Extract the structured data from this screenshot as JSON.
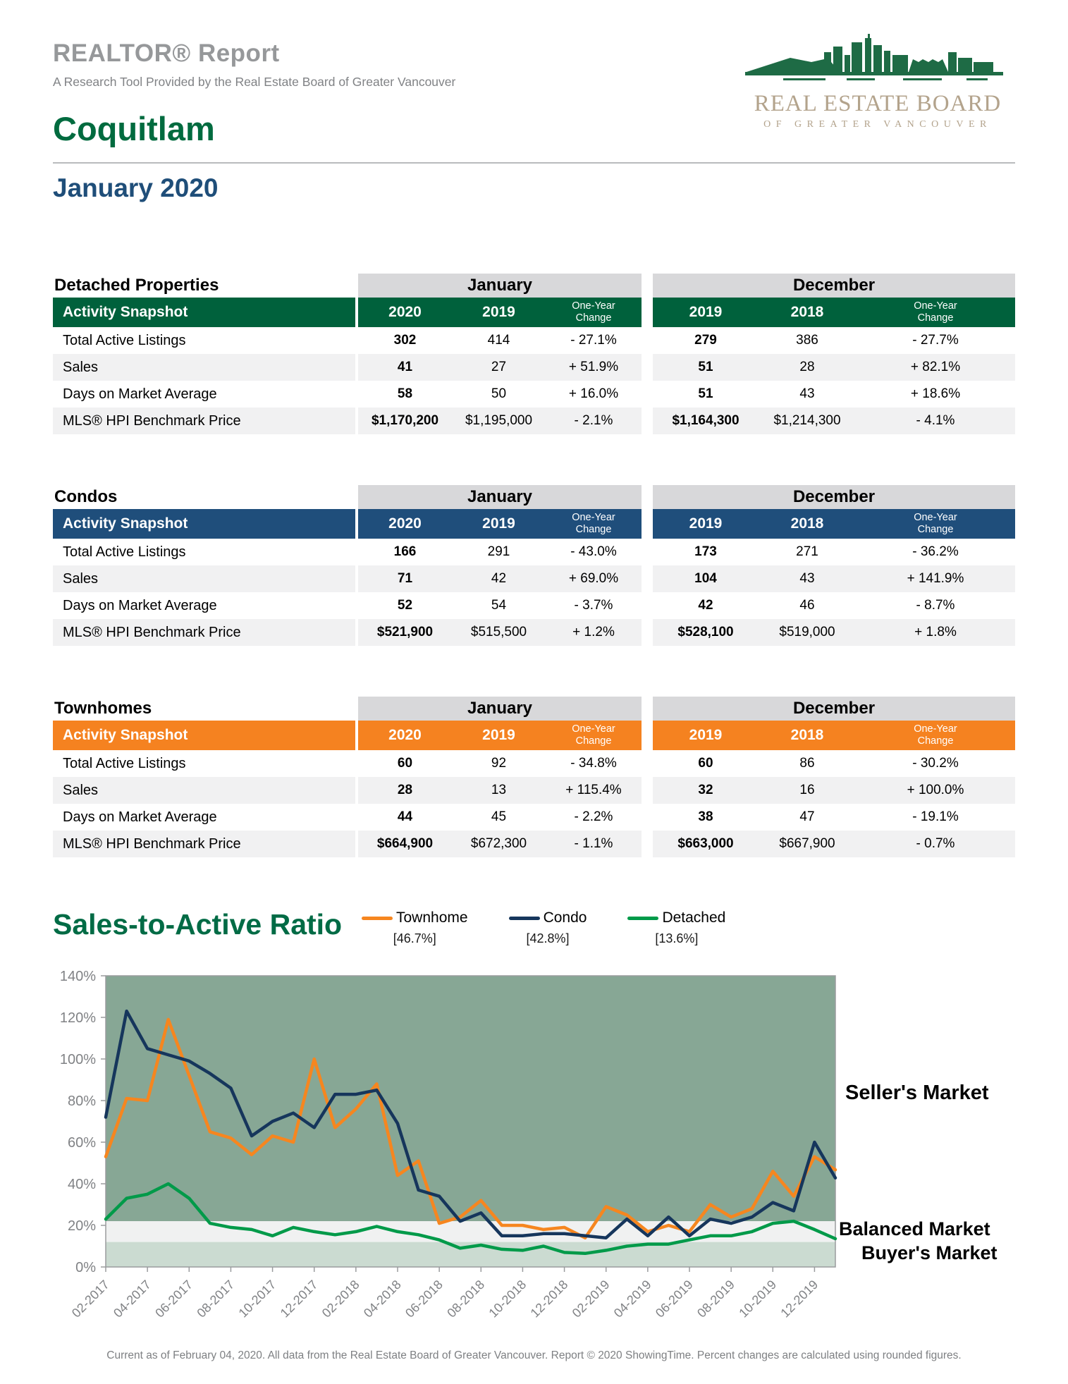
{
  "header": {
    "report_title": "REALTOR® Report",
    "report_subtitle": "A Research Tool Provided by the Real Estate Board of Greater Vancouver",
    "area_title": "Coquitlam",
    "period_title": "January 2020",
    "logo": {
      "icon": "city-skyline",
      "line1": "REAL ESTATE BOARD",
      "line2": "OF GREATER VANCOUVER"
    }
  },
  "tables": [
    {
      "title": "Detached Properties",
      "accent_color": "#00613C",
      "group1_label": "January",
      "group2_label": "December",
      "header_label": "Activity Snapshot",
      "col_headers": [
        "2020",
        "2019",
        "One-Year Change",
        "2019",
        "2018",
        "One-Year Change"
      ],
      "rows": [
        {
          "label": "Total Active Listings",
          "values": [
            "302",
            "414",
            "- 27.1%",
            "279",
            "386",
            "- 27.7%"
          ]
        },
        {
          "label": "Sales",
          "values": [
            "41",
            "27",
            "+ 51.9%",
            "51",
            "28",
            "+ 82.1%"
          ]
        },
        {
          "label": "Days on Market Average",
          "values": [
            "58",
            "50",
            "+ 16.0%",
            "51",
            "43",
            "+ 18.6%"
          ]
        },
        {
          "label": "MLS® HPI Benchmark Price",
          "values": [
            "$1,170,200",
            "$1,195,000",
            "- 2.1%",
            "$1,164,300",
            "$1,214,300",
            "- 4.1%"
          ]
        }
      ]
    },
    {
      "title": "Condos",
      "accent_color": "#1F4E7B",
      "group1_label": "January",
      "group2_label": "December",
      "header_label": "Activity Snapshot",
      "col_headers": [
        "2020",
        "2019",
        "One-Year Change",
        "2019",
        "2018",
        "One-Year Change"
      ],
      "rows": [
        {
          "label": "Total Active Listings",
          "values": [
            "166",
            "291",
            "- 43.0%",
            "173",
            "271",
            "- 36.2%"
          ]
        },
        {
          "label": "Sales",
          "values": [
            "71",
            "42",
            "+ 69.0%",
            "104",
            "43",
            "+ 141.9%"
          ]
        },
        {
          "label": "Days on Market Average",
          "values": [
            "52",
            "54",
            "- 3.7%",
            "42",
            "46",
            "- 8.7%"
          ]
        },
        {
          "label": "MLS® HPI Benchmark Price",
          "values": [
            "$521,900",
            "$515,500",
            "+ 1.2%",
            "$528,100",
            "$519,000",
            "+ 1.8%"
          ]
        }
      ]
    },
    {
      "title": "Townhomes",
      "accent_color": "#F58220",
      "group1_label": "January",
      "group2_label": "December",
      "header_label": "Activity Snapshot",
      "col_headers": [
        "2020",
        "2019",
        "One-Year Change",
        "2019",
        "2018",
        "One-Year Change"
      ],
      "rows": [
        {
          "label": "Total Active Listings",
          "values": [
            "60",
            "92",
            "- 34.8%",
            "60",
            "86",
            "- 30.2%"
          ]
        },
        {
          "label": "Sales",
          "values": [
            "28",
            "13",
            "+ 115.4%",
            "32",
            "16",
            "+ 100.0%"
          ]
        },
        {
          "label": "Days on Market Average",
          "values": [
            "44",
            "45",
            "- 2.2%",
            "38",
            "47",
            "- 19.1%"
          ]
        },
        {
          "label": "MLS® HPI Benchmark Price",
          "values": [
            "$664,900",
            "$672,300",
            "- 1.1%",
            "$663,000",
            "$667,900",
            "- 0.7%"
          ]
        }
      ]
    }
  ],
  "chart": {
    "title": "Sales-to-Active Ratio",
    "sellers_label": "Seller's Market",
    "balanced_label": "Balanced Market",
    "buyers_label": "Buyer's Market"
  },
  "chart_data": {
    "type": "line",
    "title": "Sales-to-Active Ratio",
    "ylim": [
      0,
      140
    ],
    "y_tick_labels": [
      "0%",
      "20%",
      "40%",
      "60%",
      "80%",
      "100%",
      "120%",
      "140%"
    ],
    "x": [
      "02-2017",
      "03-2017",
      "04-2017",
      "05-2017",
      "06-2017",
      "07-2017",
      "08-2017",
      "09-2017",
      "10-2017",
      "11-2017",
      "12-2017",
      "01-2018",
      "02-2018",
      "03-2018",
      "04-2018",
      "05-2018",
      "06-2018",
      "07-2018",
      "08-2018",
      "09-2018",
      "10-2018",
      "11-2018",
      "12-2018",
      "01-2019",
      "02-2019",
      "03-2019",
      "04-2019",
      "05-2019",
      "06-2019",
      "07-2019",
      "08-2019",
      "09-2019",
      "10-2019",
      "11-2019",
      "12-2019",
      "01-2020"
    ],
    "x_tick_every": 2,
    "bands": [
      {
        "name": "sellers-market",
        "from": 22,
        "to": 140,
        "color": "#87A795"
      },
      {
        "name": "balanced-market",
        "from": 12,
        "to": 22,
        "color": "#F0F1F1"
      },
      {
        "name": "buyers-market",
        "from": 0,
        "to": 12,
        "color": "#CBDBD1"
      }
    ],
    "series": [
      {
        "name": "Townhome",
        "current": "[46.7%]",
        "color": "#F6861F",
        "values": [
          53,
          81,
          80,
          119,
          92,
          65,
          62,
          54,
          63,
          60,
          100,
          67,
          76,
          88,
          44,
          51,
          21,
          24,
          32,
          20,
          20,
          18,
          19,
          14,
          29,
          25,
          17,
          20,
          17,
          30,
          24,
          28,
          46,
          34,
          53,
          46.7
        ]
      },
      {
        "name": "Condo",
        "current": "[42.8%]",
        "color": "#16365C",
        "values": [
          72,
          123,
          105,
          102,
          99,
          93,
          86,
          63,
          70,
          74,
          67,
          83,
          83,
          85,
          69,
          37,
          34,
          22,
          26,
          15,
          15,
          16,
          16,
          15,
          14,
          23,
          15,
          24,
          15,
          23,
          21,
          24,
          31,
          27,
          60,
          42.8
        ]
      },
      {
        "name": "Detached",
        "current": "[13.6%]",
        "color": "#009A49",
        "values": [
          23,
          33,
          35,
          40,
          33,
          21,
          19,
          18,
          15,
          19,
          17,
          15.5,
          17,
          19.5,
          17,
          15.5,
          13,
          9,
          10.5,
          8.5,
          8,
          10,
          7,
          6.5,
          8,
          10,
          11,
          11,
          13,
          15,
          15,
          17,
          21,
          22,
          18,
          13.6
        ]
      }
    ],
    "legend_position": "top"
  },
  "footer": {
    "note": "Current as of February 04, 2020. All data from the Real Estate Board of Greater Vancouver. Report © 2020 ShowingTime. Percent changes are calculated using rounded figures."
  }
}
